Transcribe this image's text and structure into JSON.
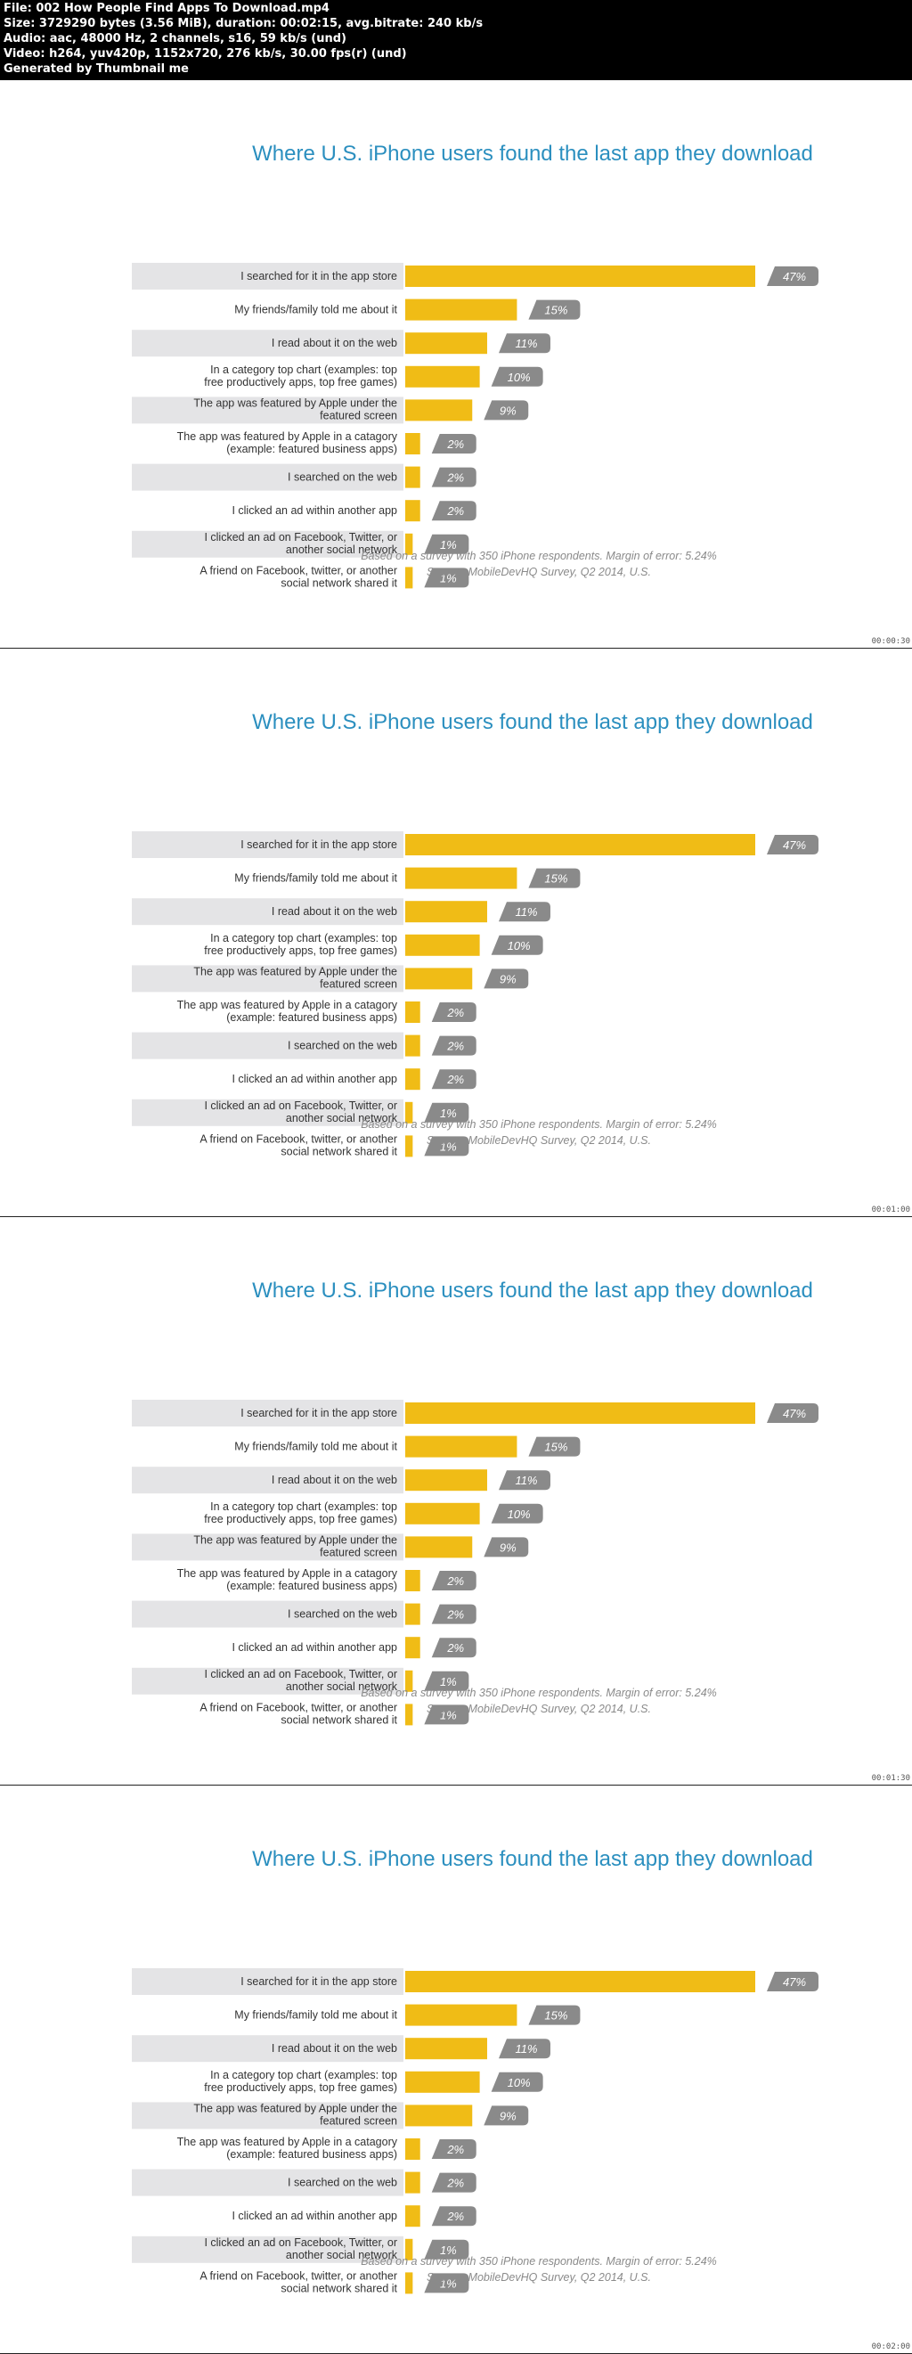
{
  "header": {
    "lines": [
      "File: 002 How People Find Apps To Download.mp4",
      "Size: 3729290 bytes (3.56 MiB), duration: 00:02:15, avg.bitrate: 240 kb/s",
      "Audio: aac, 48000 Hz, 2 channels, s16, 59 kb/s (und)",
      "Video: h264, yuv420p, 1152x720, 276 kb/s, 30.00 fps(r) (und)",
      "Generated by Thumbnail me"
    ]
  },
  "frames": [
    {
      "timestamp": "00:00:30"
    },
    {
      "timestamp": "00:01:00"
    },
    {
      "timestamp": "00:01:30"
    },
    {
      "timestamp": "00:02:00"
    }
  ],
  "colors": {
    "title": "#2b8fbf",
    "bar": "#f0bc16",
    "label_bg": "#e4e4e6",
    "badge": "#8a8a8a",
    "note": "#8a8a8a"
  },
  "chart_data": {
    "type": "bar",
    "orientation": "horizontal",
    "title": "Where U.S. iPhone users found the last app they download",
    "categories": [
      [
        "I searched for it in the app store"
      ],
      [
        "My friends/family told me about it"
      ],
      [
        "I read about it on the web"
      ],
      [
        "In a category top chart (examples: top",
        "free productively apps, top free games)"
      ],
      [
        "The app was featured by Apple under the",
        "featured screen"
      ],
      [
        "The app was featured by Apple in a catagory",
        "(example: featured business apps)"
      ],
      [
        "I searched on the web"
      ],
      [
        "I clicked an ad within another app"
      ],
      [
        "I clicked an ad on Facebook, Twitter, or",
        "another social network"
      ],
      [
        "A friend on Facebook, twitter, or another",
        "social network shared it"
      ]
    ],
    "values": [
      47,
      15,
      11,
      10,
      9,
      2,
      2,
      2,
      1,
      1
    ],
    "value_labels": [
      "47%",
      "15%",
      "11%",
      "10%",
      "9%",
      "2%",
      "2%",
      "2%",
      "1%",
      "1%"
    ],
    "footnotes": [
      "Based on a survey with 350 iPhone respondents. Margin of error: 5.24%",
      "Source: MobileDevHQ Survey, Q2 2014, U.S."
    ]
  }
}
